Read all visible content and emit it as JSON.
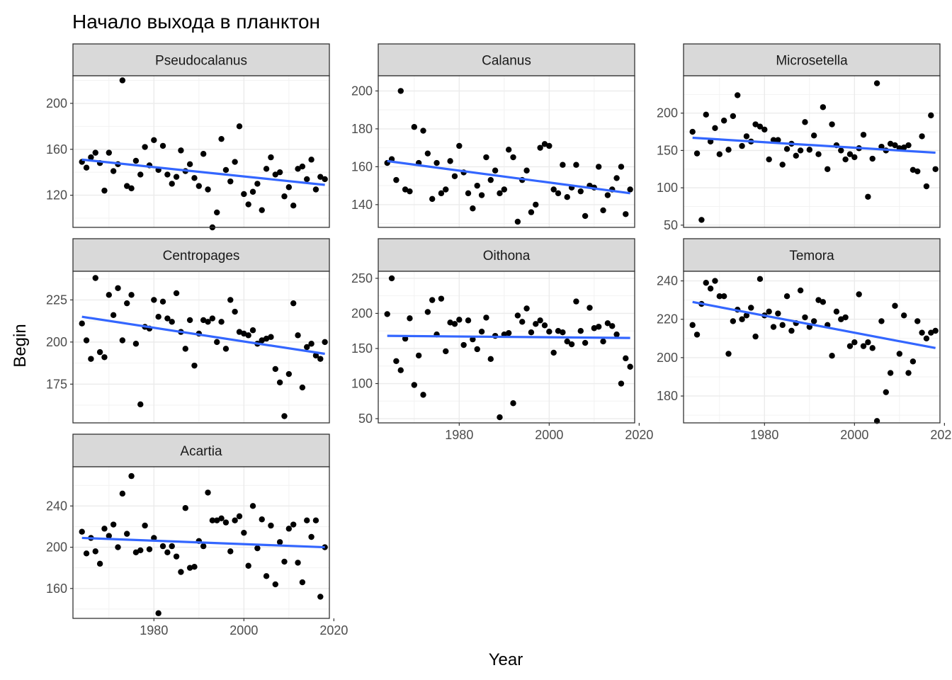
{
  "chart_data": {
    "type": "scatter",
    "title": "Начало выхода в планктон",
    "xlabel": "Year",
    "ylabel": "Begin",
    "xlim": [
      1962,
      2019
    ],
    "x_ticks": [
      1980,
      2000,
      2020
    ],
    "trend_color": "#3366ff",
    "point_color": "#000000",
    "strip_fill": "#d9d9d9",
    "panels": [
      {
        "name": "Pseudocalanus",
        "ylim": [
          92,
          224
        ],
        "y_ticks": [
          120,
          160,
          200
        ],
        "trend": [
          [
            1964,
            151
          ],
          [
            2018,
            129
          ]
        ],
        "x": [
          1964,
          1965,
          1966,
          1967,
          1968,
          1969,
          1970,
          1971,
          1972,
          1973,
          1974,
          1975,
          1976,
          1977,
          1978,
          1979,
          1980,
          1981,
          1982,
          1983,
          1984,
          1985,
          1986,
          1987,
          1988,
          1989,
          1990,
          1991,
          1992,
          1993,
          1994,
          1995,
          1996,
          1997,
          1998,
          1999,
          2000,
          2001,
          2002,
          2003,
          2004,
          2005,
          2006,
          2007,
          2008,
          2009,
          2010,
          2011,
          2012,
          2013,
          2014,
          2015,
          2016,
          2017,
          2018
        ],
        "y": [
          149,
          144,
          153,
          157,
          148,
          124,
          157,
          141,
          147,
          220,
          128,
          126,
          150,
          138,
          162,
          146,
          168,
          142,
          163,
          138,
          130,
          136,
          159,
          141,
          147,
          135,
          128,
          156,
          125,
          92,
          105,
          169,
          142,
          132,
          149,
          180,
          121,
          112,
          123,
          130,
          107,
          143,
          153,
          138,
          140,
          119,
          127,
          111,
          143,
          145,
          134,
          151,
          125,
          136,
          134
        ]
      },
      {
        "name": "Calanus",
        "ylim": [
          128,
          208
        ],
        "y_ticks": [
          140,
          160,
          180,
          200
        ],
        "trend": [
          [
            1964,
            163
          ],
          [
            2018,
            146
          ]
        ],
        "x": [
          1964,
          1965,
          1966,
          1967,
          1968,
          1969,
          1970,
          1971,
          1972,
          1973,
          1974,
          1975,
          1976,
          1977,
          1978,
          1979,
          1980,
          1981,
          1982,
          1983,
          1984,
          1985,
          1986,
          1987,
          1988,
          1989,
          1990,
          1991,
          1992,
          1993,
          1994,
          1995,
          1996,
          1997,
          1998,
          1999,
          2000,
          2001,
          2002,
          2003,
          2004,
          2005,
          2006,
          2007,
          2008,
          2009,
          2010,
          2011,
          2012,
          2013,
          2014,
          2015,
          2016,
          2017,
          2018
        ],
        "y": [
          162,
          164,
          153,
          200,
          148,
          147,
          181,
          162,
          179,
          167,
          143,
          162,
          146,
          148,
          163,
          155,
          171,
          157,
          146,
          138,
          150,
          145,
          165,
          153,
          158,
          146,
          148,
          169,
          165,
          131,
          153,
          158,
          136,
          140,
          170,
          172,
          171,
          148,
          146,
          161,
          144,
          149,
          161,
          147,
          134,
          150,
          149,
          160,
          137,
          145,
          148,
          154,
          160,
          135,
          148
        ]
      },
      {
        "name": "Microsetella",
        "ylim": [
          47,
          250
        ],
        "y_ticks": [
          50,
          100,
          150,
          200
        ],
        "trend": [
          [
            1964,
            167
          ],
          [
            2018,
            147
          ]
        ],
        "x": [
          1964,
          1965,
          1966,
          1967,
          1968,
          1969,
          1970,
          1971,
          1972,
          1973,
          1974,
          1975,
          1976,
          1977,
          1978,
          1979,
          1980,
          1981,
          1982,
          1983,
          1984,
          1985,
          1986,
          1987,
          1988,
          1989,
          1990,
          1991,
          1992,
          1993,
          1994,
          1995,
          1996,
          1997,
          1998,
          1999,
          2000,
          2001,
          2002,
          2003,
          2004,
          2005,
          2006,
          2007,
          2008,
          2009,
          2010,
          2011,
          2012,
          2013,
          2014,
          2015,
          2016,
          2017,
          2018
        ],
        "y": [
          175,
          146,
          57,
          198,
          162,
          180,
          145,
          190,
          151,
          196,
          224,
          156,
          169,
          162,
          185,
          182,
          178,
          138,
          164,
          164,
          131,
          152,
          159,
          143,
          150,
          188,
          151,
          170,
          145,
          208,
          125,
          185,
          157,
          150,
          138,
          145,
          141,
          153,
          171,
          88,
          139,
          240,
          155,
          150,
          159,
          157,
          153,
          154,
          157,
          124,
          122,
          169,
          102,
          197,
          125
        ]
      },
      {
        "name": "Centropages",
        "ylim": [
          152,
          242
        ],
        "y_ticks": [
          175,
          200,
          225
        ],
        "trend": [
          [
            1964,
            215
          ],
          [
            2018,
            193
          ]
        ],
        "x": [
          1964,
          1965,
          1966,
          1967,
          1968,
          1969,
          1970,
          1971,
          1972,
          1973,
          1974,
          1975,
          1976,
          1977,
          1978,
          1979,
          1980,
          1981,
          1982,
          1983,
          1984,
          1985,
          1986,
          1987,
          1988,
          1989,
          1990,
          1991,
          1992,
          1993,
          1994,
          1995,
          1996,
          1997,
          1998,
          1999,
          2000,
          2001,
          2002,
          2003,
          2004,
          2005,
          2006,
          2007,
          2008,
          2009,
          2010,
          2011,
          2012,
          2013,
          2014,
          2015,
          2016,
          2017,
          2018
        ],
        "y": [
          211,
          201,
          190,
          238,
          194,
          191,
          228,
          216,
          232,
          201,
          223,
          228,
          199,
          163,
          209,
          208,
          225,
          215,
          224,
          214,
          212,
          229,
          206,
          196,
          213,
          186,
          205,
          213,
          212,
          214,
          200,
          212,
          196,
          225,
          218,
          206,
          205,
          204,
          207,
          199,
          201,
          202,
          203,
          184,
          176,
          156,
          181,
          223,
          204,
          173,
          197,
          199,
          192,
          190,
          200
        ]
      },
      {
        "name": "Oithona",
        "ylim": [
          44,
          260
        ],
        "y_ticks": [
          50,
          100,
          150,
          200,
          250
        ],
        "trend": [
          [
            1964,
            168
          ],
          [
            2018,
            165
          ]
        ],
        "x": [
          1964,
          1965,
          1966,
          1967,
          1968,
          1969,
          1970,
          1971,
          1972,
          1973,
          1974,
          1975,
          1976,
          1977,
          1978,
          1979,
          1980,
          1981,
          1982,
          1983,
          1984,
          1985,
          1986,
          1987,
          1988,
          1989,
          1990,
          1991,
          1992,
          1993,
          1994,
          1995,
          1996,
          1997,
          1998,
          1999,
          2000,
          2001,
          2002,
          2003,
          2004,
          2005,
          2006,
          2007,
          2008,
          2009,
          2010,
          2011,
          2012,
          2013,
          2014,
          2015,
          2016,
          2017,
          2018
        ],
        "y": [
          199,
          250,
          132,
          119,
          164,
          193,
          98,
          140,
          84,
          202,
          219,
          170,
          221,
          146,
          187,
          185,
          191,
          155,
          190,
          163,
          149,
          174,
          194,
          135,
          168,
          52,
          170,
          172,
          72,
          197,
          188,
          207,
          173,
          185,
          190,
          183,
          174,
          144,
          175,
          173,
          160,
          156,
          217,
          175,
          158,
          208,
          179,
          181,
          160,
          186,
          182,
          170,
          100,
          136,
          124
        ]
      },
      {
        "name": "Temora",
        "ylim": [
          166,
          245
        ],
        "y_ticks": [
          180,
          200,
          220,
          240
        ],
        "trend": [
          [
            1964,
            229
          ],
          [
            2018,
            205
          ]
        ],
        "x": [
          1964,
          1965,
          1966,
          1967,
          1968,
          1969,
          1970,
          1971,
          1972,
          1973,
          1974,
          1975,
          1976,
          1977,
          1978,
          1979,
          1980,
          1981,
          1982,
          1983,
          1984,
          1985,
          1986,
          1987,
          1988,
          1989,
          1990,
          1991,
          1992,
          1993,
          1994,
          1995,
          1996,
          1997,
          1998,
          1999,
          2000,
          2001,
          2002,
          2003,
          2004,
          2005,
          2006,
          2007,
          2008,
          2009,
          2010,
          2011,
          2012,
          2013,
          2014,
          2015,
          2016,
          2017,
          2018
        ],
        "y": [
          217,
          212,
          228,
          239,
          236,
          240,
          232,
          232,
          202,
          219,
          225,
          220,
          222,
          226,
          211,
          241,
          222,
          224,
          216,
          223,
          217,
          232,
          214,
          218,
          235,
          221,
          216,
          219,
          230,
          229,
          217,
          201,
          224,
          220,
          221,
          206,
          208,
          233,
          206,
          208,
          205,
          167,
          219,
          182,
          192,
          227,
          202,
          222,
          192,
          198,
          219,
          213,
          210,
          213,
          214
        ]
      },
      {
        "name": "Acartia",
        "ylim": [
          131,
          278
        ],
        "y_ticks": [
          160,
          200,
          240
        ],
        "trend": [
          [
            1964,
            209
          ],
          [
            2018,
            200
          ]
        ],
        "x": [
          1964,
          1965,
          1966,
          1967,
          1968,
          1969,
          1970,
          1971,
          1972,
          1973,
          1974,
          1975,
          1976,
          1977,
          1978,
          1979,
          1980,
          1981,
          1982,
          1983,
          1984,
          1985,
          1986,
          1987,
          1988,
          1989,
          1990,
          1991,
          1992,
          1993,
          1994,
          1995,
          1996,
          1997,
          1998,
          1999,
          2000,
          2001,
          2002,
          2003,
          2004,
          2005,
          2006,
          2007,
          2008,
          2009,
          2010,
          2011,
          2012,
          2013,
          2014,
          2015,
          2016,
          2017,
          2018
        ],
        "y": [
          215,
          194,
          209,
          196,
          184,
          218,
          211,
          222,
          200,
          252,
          213,
          269,
          195,
          197,
          221,
          198,
          209,
          136,
          201,
          195,
          201,
          191,
          176,
          238,
          180,
          181,
          206,
          201,
          253,
          226,
          226,
          228,
          224,
          196,
          226,
          230,
          214,
          182,
          240,
          199,
          227,
          172,
          221,
          164,
          205,
          186,
          218,
          222,
          185,
          166,
          226,
          210,
          226,
          152,
          200
        ]
      }
    ]
  }
}
